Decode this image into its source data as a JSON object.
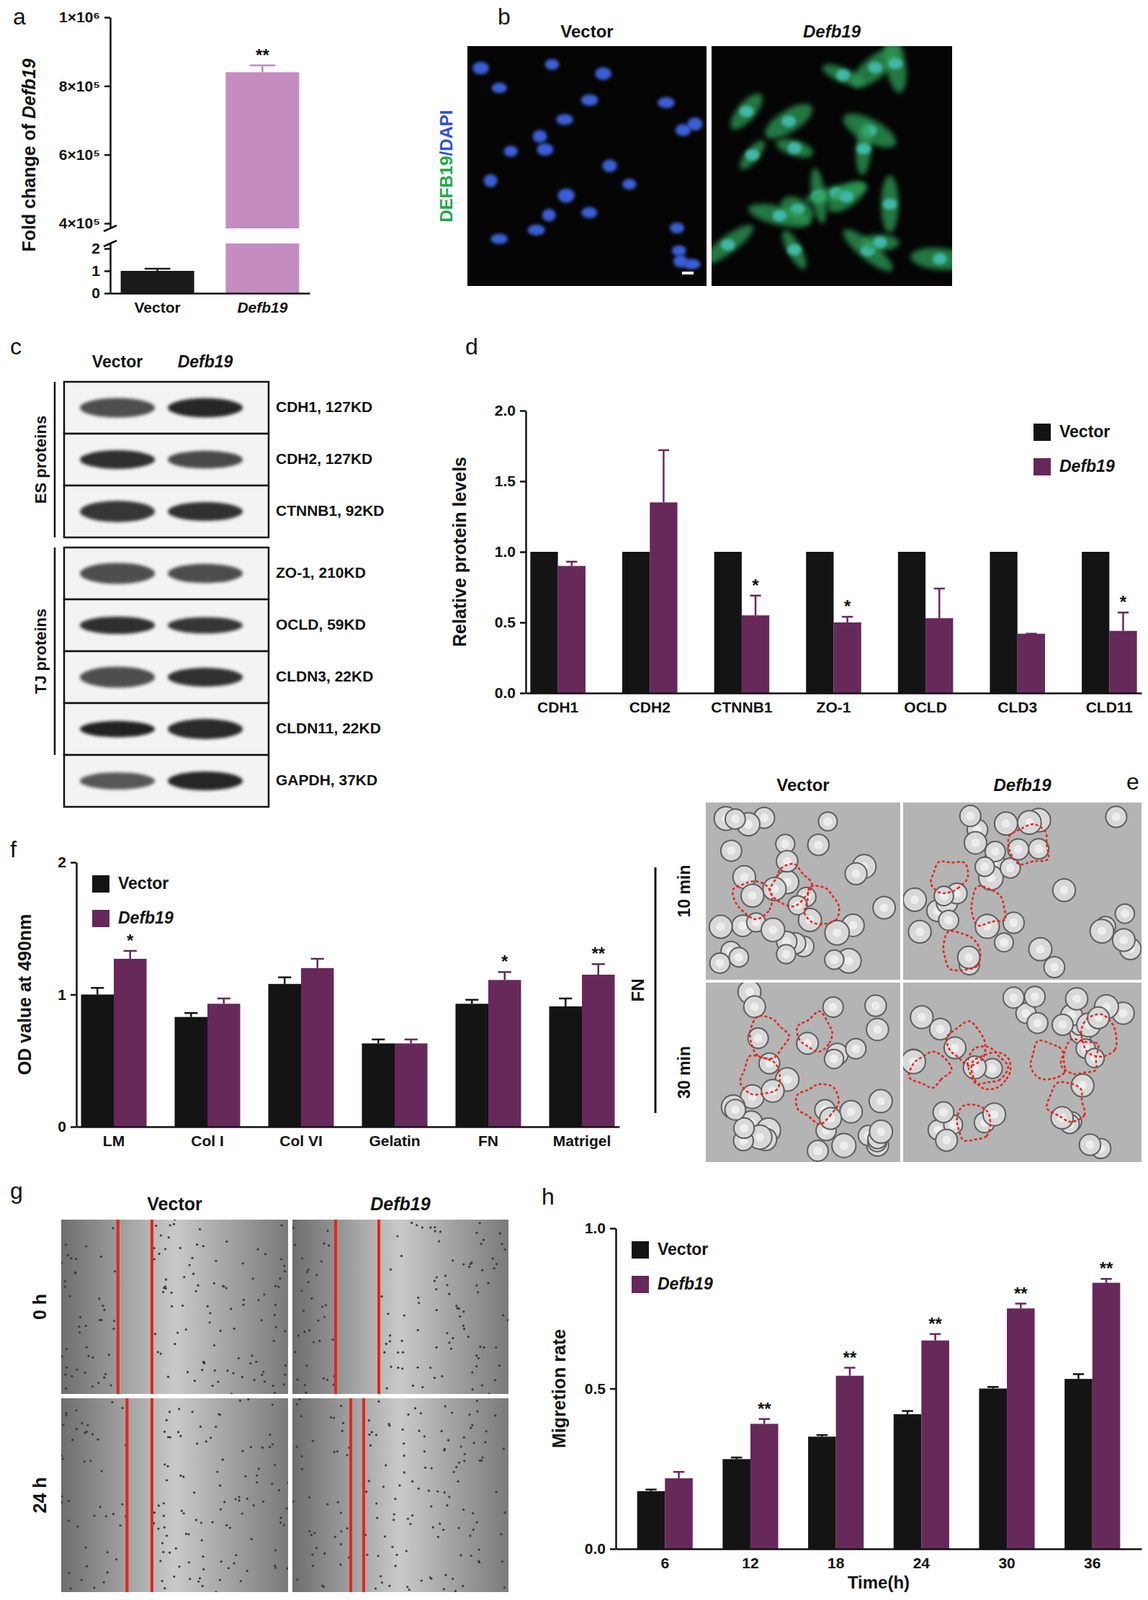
{
  "chart_data": [
    {
      "panel_label": "a",
      "type": "bar",
      "y_label": "Fold change of Defb19",
      "categories": [
        "Vector",
        "Defb19"
      ],
      "values": [
        1,
        840000
      ],
      "errors": [
        0.1,
        20000
      ],
      "colors": [
        "#1a1a1a",
        "#c48cbf"
      ],
      "significance": [
        null,
        "**"
      ],
      "ylim": [
        0,
        1000000
      ],
      "axis_break": [
        2,
        400000
      ],
      "yticks": [
        0,
        1,
        2,
        {
          "value": 400000,
          "label": "4×10⁵"
        },
        {
          "value": 600000,
          "label": "6×10⁵"
        },
        {
          "value": 800000,
          "label": "8×10⁵"
        },
        {
          "value": 1000000,
          "label": "1×10⁶"
        }
      ]
    },
    {
      "panel_label": "d",
      "type": "bar",
      "y_label": "Relative protein levels",
      "categories": [
        "CDH1",
        "CDH2",
        "CTNNB1",
        "ZO-1",
        "OCLD",
        "CLD3",
        "CLD11"
      ],
      "series": [
        {
          "name": "Vector",
          "color": "#141414",
          "values": [
            1,
            1,
            1,
            1,
            1,
            1,
            1
          ]
        },
        {
          "name": "Defb19",
          "color": "#66295a",
          "values": [
            0.9,
            1.35,
            0.55,
            0.5,
            0.53,
            0.42,
            0.44
          ],
          "errors": [
            0.03,
            0.37,
            0.14,
            0.04,
            0.21,
            0,
            0.13
          ],
          "significance": [
            null,
            null,
            "*",
            "*",
            null,
            null,
            "*"
          ]
        }
      ],
      "ylim": [
        0,
        2
      ],
      "yticks": [
        {
          "value": 0,
          "label": "0.0"
        },
        {
          "value": 0.5,
          "label": "0.5"
        },
        {
          "value": 1,
          "label": "1.0"
        },
        {
          "value": 1.5,
          "label": "1.5"
        },
        {
          "value": 2,
          "label": "2.0"
        }
      ],
      "legend": "upper right"
    },
    {
      "panel_label": "f",
      "type": "bar",
      "y_label": "OD value at 490nm",
      "categories": [
        "LM",
        "Col I",
        "Col VI",
        "Gelatin",
        "FN",
        "Matrigel"
      ],
      "series": [
        {
          "name": "Vector",
          "color": "#141414",
          "values": [
            1.0,
            0.83,
            1.08,
            0.63,
            0.93,
            0.91
          ],
          "errors": [
            0.05,
            0.03,
            0.05,
            0.03,
            0.03,
            0.06
          ]
        },
        {
          "name": "Defb19",
          "color": "#66295a",
          "values": [
            1.27,
            0.93,
            1.2,
            0.63,
            1.11,
            1.15
          ],
          "errors": [
            0.06,
            0.04,
            0.07,
            0.03,
            0.06,
            0.08
          ],
          "significance": [
            "*",
            null,
            null,
            null,
            "*",
            "**"
          ]
        }
      ],
      "ylim": [
        0,
        2
      ],
      "yticks": [
        0,
        1,
        2
      ],
      "legend": "upper left"
    },
    {
      "panel_label": "h",
      "type": "bar",
      "y_label": "Migretion rate",
      "x_label": "Time(h)",
      "categories": [
        "6",
        "12",
        "18",
        "24",
        "30",
        "36"
      ],
      "series": [
        {
          "name": "Vector",
          "color": "#141414",
          "values": [
            0.18,
            0.28,
            0.35,
            0.42,
            0.5,
            0.53
          ],
          "errors": [
            0.005,
            0.005,
            0.005,
            0.01,
            0.005,
            0.015
          ]
        },
        {
          "name": "Defb19",
          "color": "#66295a",
          "values": [
            0.22,
            0.39,
            0.54,
            0.65,
            0.75,
            0.83
          ],
          "errors": [
            0.02,
            0.015,
            0.025,
            0.02,
            0.015,
            0.012
          ],
          "significance": [
            null,
            "**",
            "**",
            "**",
            "**",
            "**"
          ]
        }
      ],
      "ylim": [
        0,
        1
      ],
      "yticks": [
        {
          "value": 0,
          "label": "0.0"
        },
        {
          "value": 0.5,
          "label": "0.5"
        },
        {
          "value": 1,
          "label": "1.0"
        }
      ],
      "legend": "upper left"
    }
  ],
  "panels": {
    "b": {
      "panel_label": "b",
      "columns": [
        "Vector",
        "Defb19"
      ],
      "row_label": "DEFB19/DAPI"
    },
    "c": {
      "panel_label": "c",
      "columns": [
        "Vector",
        "Defb19"
      ],
      "groups": [
        {
          "name": "ES proteins",
          "rows": [
            "CDH1, 127KD",
            "CDH2, 127KD",
            "CTNNB1, 92KD"
          ]
        },
        {
          "name": "TJ proteins",
          "rows": [
            "ZO-1, 210KD",
            "OCLD, 59KD",
            "CLDN3, 22KD",
            "CLDN11, 22KD"
          ]
        }
      ],
      "loading_control": "GAPDH, 37KD"
    },
    "e": {
      "panel_label": "e",
      "columns": [
        "Vector",
        "Defb19"
      ],
      "condition": "FN",
      "rows": [
        "10 min",
        "30 min"
      ]
    },
    "g": {
      "panel_label": "g",
      "columns": [
        "Vector",
        "Defb19"
      ],
      "rows": [
        "0 h",
        "24 h"
      ]
    }
  }
}
